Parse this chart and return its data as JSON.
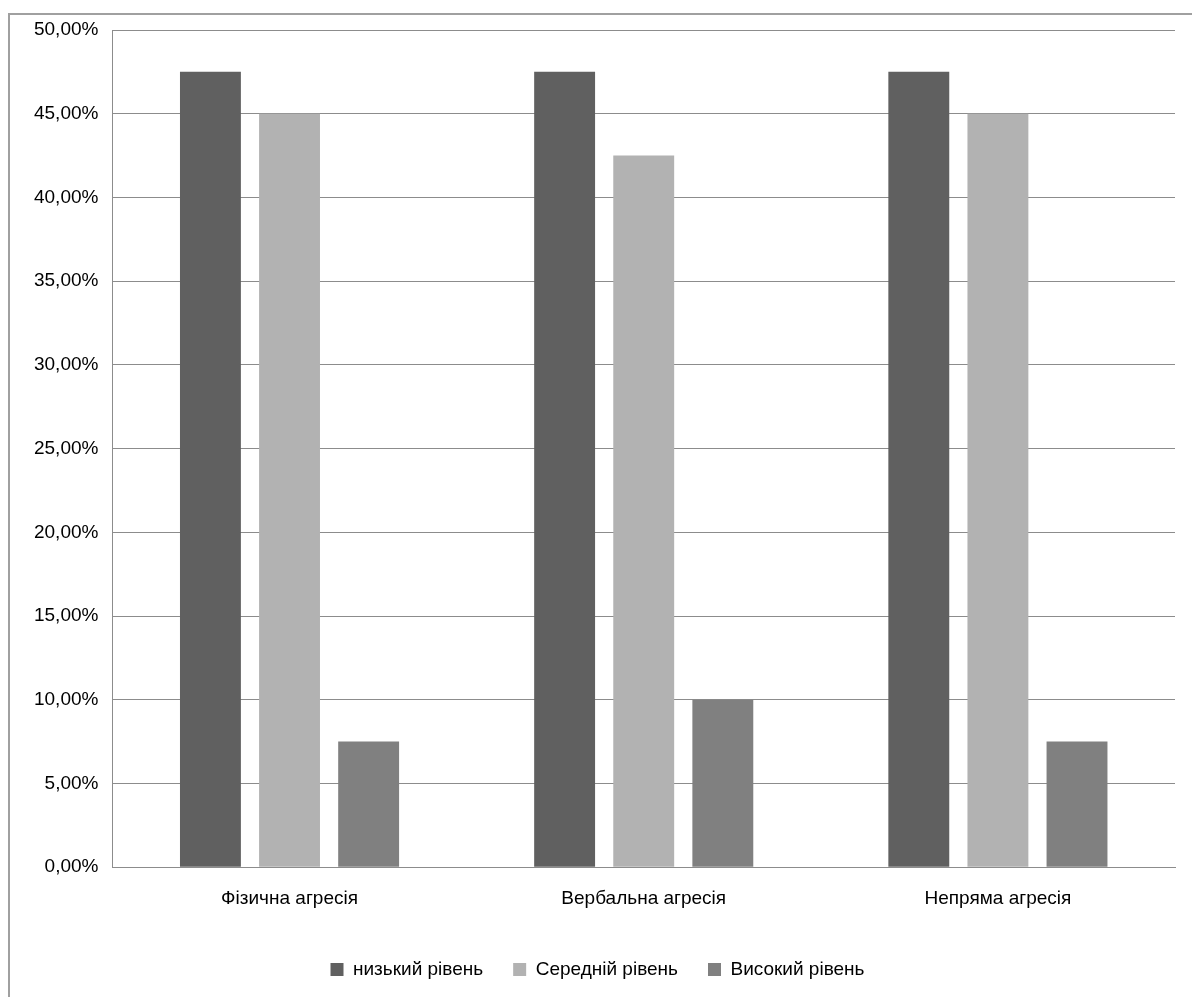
{
  "chart_data": {
    "type": "bar",
    "categories": [
      "Фізична агресія",
      "Вербальна агресія",
      "Непряма агресія"
    ],
    "series": [
      {
        "name": "низький рівень",
        "color": "#606060",
        "values": [
          47.5,
          47.5,
          47.5
        ]
      },
      {
        "name": "Середній рівень",
        "color": "#b2b2b2",
        "values": [
          45,
          42.5,
          45
        ]
      },
      {
        "name": "Високий рівень",
        "color": "#808080",
        "values": [
          7.5,
          10,
          7.5
        ]
      }
    ],
    "ylim": [
      0,
      50
    ],
    "yticks": [
      {
        "value": 0,
        "label": "0,00%"
      },
      {
        "value": 5,
        "label": "5,00%"
      },
      {
        "value": 10,
        "label": "10,00%"
      },
      {
        "value": 15,
        "label": "15,00%"
      },
      {
        "value": 20,
        "label": "20,00%"
      },
      {
        "value": 25,
        "label": "25,00%"
      },
      {
        "value": 30,
        "label": "30,00%"
      },
      {
        "value": 35,
        "label": "35,00%"
      },
      {
        "value": 40,
        "label": "40,00%"
      },
      {
        "value": 45,
        "label": "45,00%"
      },
      {
        "value": 50,
        "label": "50,00%"
      }
    ],
    "grid": "y",
    "legend": "bottom"
  }
}
